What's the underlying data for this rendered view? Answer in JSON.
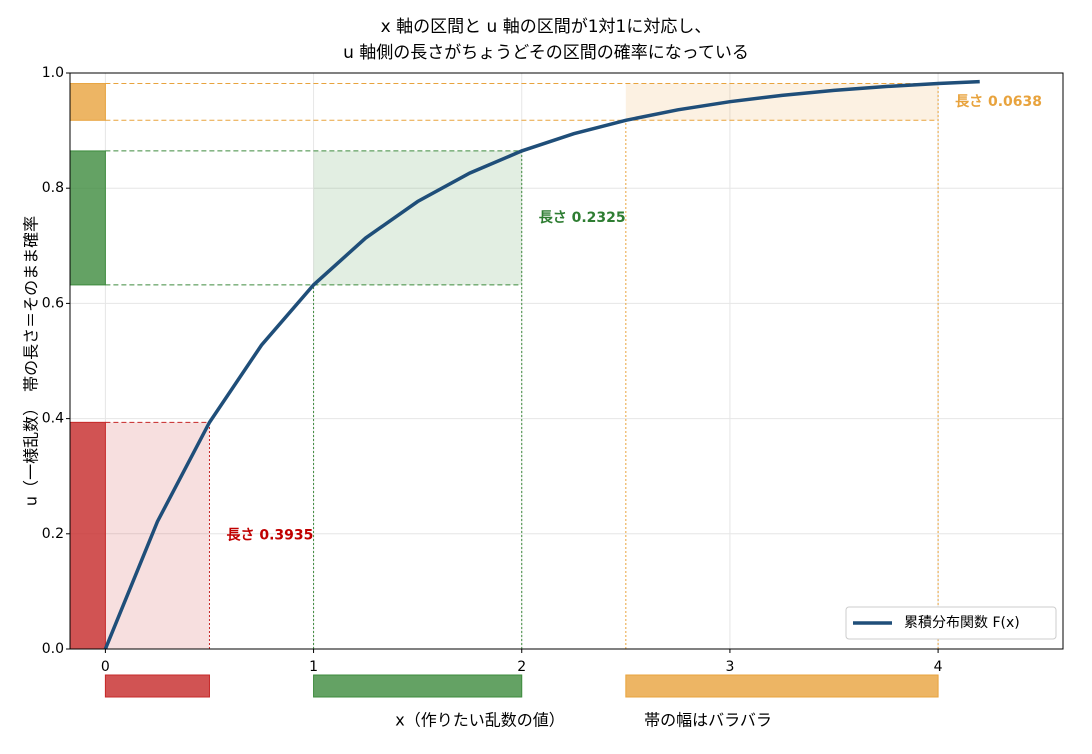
{
  "chart_data": {
    "type": "line",
    "title": [
      "x 軸の区間と u 軸の区間が1対1に対応し、",
      "u 軸側の長さがちょうどその区間の確率になっている"
    ],
    "x_label": "x（作りたい乱数の値）",
    "x_note": "帯の幅はバラバラ",
    "y_label": "u（一様乱数）　帯の長さ＝そのまま確率",
    "x": [
      0,
      0.25,
      0.5,
      0.75,
      1,
      1.25,
      1.5,
      1.75,
      2,
      2.25,
      2.5,
      2.75,
      3,
      3.25,
      3.5,
      3.75,
      4,
      4.2
    ],
    "series": [
      {
        "name": "累積分布関数 F(x)",
        "color": "#1f4e79",
        "values": [
          0,
          0.2212,
          0.3935,
          0.5276,
          0.6321,
          0.7135,
          0.7769,
          0.8262,
          0.8647,
          0.8946,
          0.9179,
          0.9361,
          0.9502,
          0.9612,
          0.9698,
          0.9765,
          0.9817,
          0.985
        ]
      }
    ],
    "bands": [
      {
        "x": [
          0,
          0.5
        ],
        "u": [
          0,
          0.3935
        ],
        "color": "#c62828",
        "label_color": "#c00000",
        "label": "長さ 0.3935"
      },
      {
        "x": [
          1,
          2
        ],
        "u": [
          0.6321,
          0.8647
        ],
        "color": "#3d8b3d",
        "label_color": "#2e7d32",
        "label": "長さ 0.2325"
      },
      {
        "x": [
          2.5,
          4
        ],
        "u": [
          0.9179,
          0.9817
        ],
        "color": "#e8a33d",
        "label_color": "#e8a33d",
        "label": "長さ 0.0638"
      }
    ],
    "xlim": [
      -0.17,
      4.6
    ],
    "ylim": [
      0,
      1
    ],
    "xticks": [
      0,
      1,
      2,
      3,
      4
    ],
    "yticks": [
      {
        "value": 0,
        "label": "0.0"
      },
      {
        "value": 0.2,
        "label": "0.2"
      },
      {
        "value": 0.4,
        "label": "0.4"
      },
      {
        "value": 0.6,
        "label": "0.6"
      },
      {
        "value": 0.8,
        "label": "0.8"
      },
      {
        "value": 1,
        "label": "1.0"
      }
    ],
    "grid": true,
    "legend": "lower right"
  }
}
